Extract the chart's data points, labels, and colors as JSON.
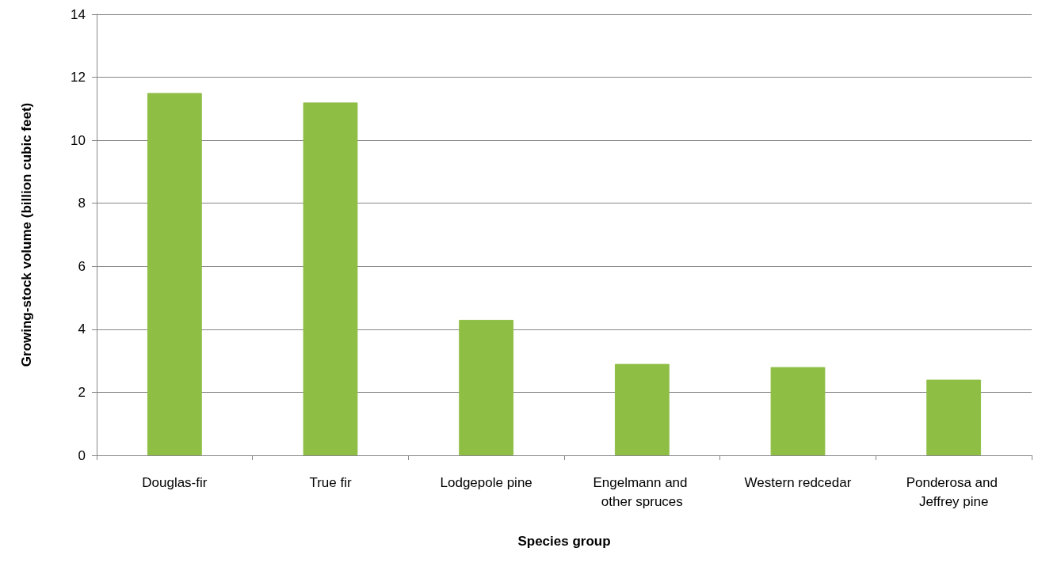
{
  "chart_data": {
    "type": "bar",
    "xlabel": "Species group",
    "ylabel": "Growing-stock volume (billion cubic feet)",
    "categories": [
      "Douglas-fir",
      "True fir",
      "Lodgepole pine",
      "Engelmann and other spruces",
      "Western redcedar",
      "Ponderosa and Jeffrey pine"
    ],
    "values": [
      11.5,
      11.2,
      4.3,
      2.9,
      2.8,
      2.4
    ],
    "color": "#8fbe45",
    "ylim": [
      0,
      14
    ],
    "yticks": [
      0,
      2,
      4,
      6,
      8,
      10,
      12,
      14
    ],
    "grid": "y"
  }
}
